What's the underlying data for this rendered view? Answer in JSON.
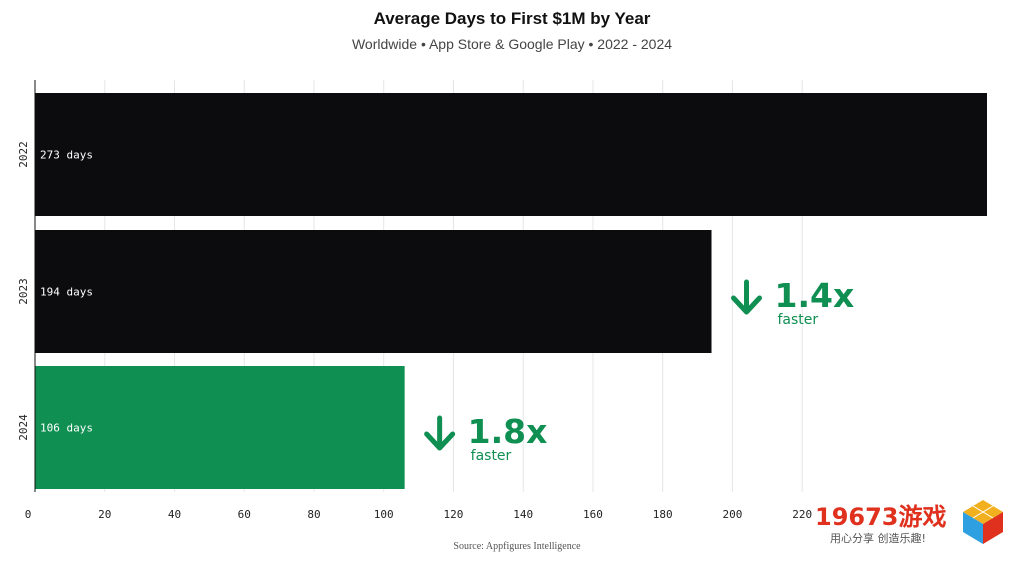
{
  "chart_data": {
    "type": "bar",
    "orientation": "horizontal",
    "title": "Average Days to First $1M by Year",
    "subtitle": "Worldwide • App Store & Google Play • 2022 - 2024",
    "source": "Source: Appfigures Intelligence",
    "categories": [
      "2022",
      "2023",
      "2024"
    ],
    "values": [
      273,
      194,
      106
    ],
    "bar_labels": [
      "273 days",
      "194 days",
      "106 days"
    ],
    "bar_colors": [
      "#0c0c0e",
      "#0c0c0e",
      "#0f8f52"
    ],
    "xlim": [
      0,
      273
    ],
    "x_ticks": [
      0,
      20,
      40,
      60,
      80,
      100,
      120,
      140,
      160,
      180,
      200,
      220
    ],
    "grid": true,
    "xlabel": "",
    "ylabel": "",
    "annotations": [
      {
        "category": "2023",
        "big": "1.4x",
        "small": "faster",
        "icon": "down-arrow-icon",
        "color": "#0f8f52"
      },
      {
        "category": "2024",
        "big": "1.8x",
        "small": "faster",
        "icon": "down-arrow-icon",
        "color": "#0f8f52"
      }
    ]
  },
  "watermark": {
    "text": "19673游戏",
    "sub": "用心分享 创造乐趣!"
  }
}
